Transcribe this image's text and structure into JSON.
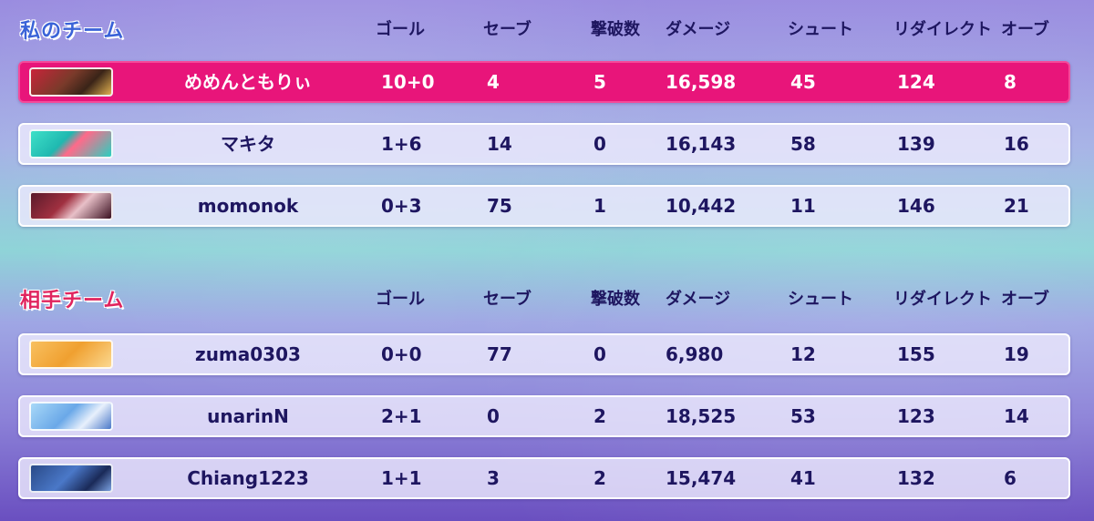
{
  "columns": [
    "ゴール",
    "セーブ",
    "撃破数",
    "ダメージ",
    "シュート",
    "リダイレクト",
    "オーブ"
  ],
  "teams": [
    {
      "title": "私のチーム",
      "title_color": "#3a63d8",
      "players": [
        {
          "name": "めめんともりぃ",
          "avatar": "player-portrait-dark-skin-red-hair",
          "goals": "10+0",
          "saves": "4",
          "kos": "5",
          "damage": "16,598",
          "shots": "45",
          "redirects": "124",
          "orbs": "8"
        },
        {
          "name": "マキタ",
          "avatar": "player-portrait-teal-hair",
          "goals": "1+6",
          "saves": "14",
          "kos": "0",
          "damage": "16,143",
          "shots": "58",
          "redirects": "139",
          "orbs": "16"
        },
        {
          "name": "momonok",
          "avatar": "player-portrait-maroon-hair",
          "goals": "0+3",
          "saves": "75",
          "kos": "1",
          "damage": "10,442",
          "shots": "11",
          "redirects": "146",
          "orbs": "21"
        }
      ]
    },
    {
      "title": "相手チーム",
      "title_color": "#e0245e",
      "players": [
        {
          "name": "zuma0303",
          "avatar": "player-portrait-hamster",
          "goals": "0+0",
          "saves": "77",
          "kos": "0",
          "damage": "6,980",
          "shots": "12",
          "redirects": "155",
          "orbs": "19"
        },
        {
          "name": "unarinN",
          "avatar": "player-portrait-light-blue-hair",
          "goals": "2+1",
          "saves": "0",
          "kos": "2",
          "damage": "18,525",
          "shots": "53",
          "redirects": "123",
          "orbs": "14"
        },
        {
          "name": "Chiang1223",
          "avatar": "player-portrait-blue-dragon",
          "goals": "1+1",
          "saves": "3",
          "kos": "2",
          "damage": "15,474",
          "shots": "41",
          "redirects": "132",
          "orbs": "6"
        }
      ]
    }
  ],
  "colors": {
    "self_highlight": "#e8157a",
    "text_dark": "#1e1660",
    "row_bg": "#ebe9fc"
  }
}
